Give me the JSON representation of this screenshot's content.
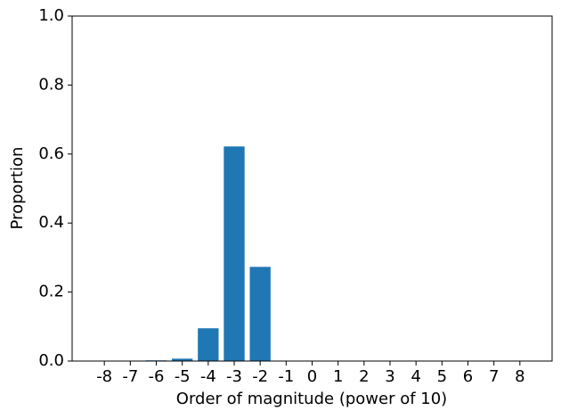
{
  "chart_data": {
    "type": "bar",
    "categories": [
      "-8",
      "-7",
      "-6",
      "-5",
      "-4",
      "-3",
      "-2",
      "-1",
      "0",
      "1",
      "2",
      "3",
      "4",
      "5",
      "6",
      "7",
      "8"
    ],
    "values": [
      0,
      0,
      0.002,
      0.007,
      0.095,
      0.622,
      0.273,
      0,
      0,
      0,
      0,
      0,
      0,
      0,
      0,
      0,
      0
    ],
    "color": "#1f77b4",
    "xlabel": "Order of magnitude (power of 10)",
    "ylabel": "Proportion",
    "ylim": [
      0,
      1
    ],
    "yticks": [
      {
        "value": 0,
        "label": "0.0"
      },
      0.2,
      0.4,
      0.6,
      0.8,
      {
        "value": 1,
        "label": "1.0"
      }
    ],
    "grid": false
  }
}
